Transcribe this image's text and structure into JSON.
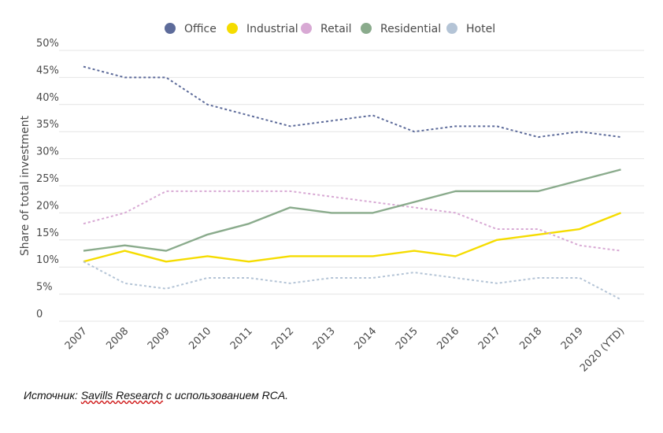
{
  "chart_data": {
    "type": "line",
    "xlabel": "",
    "ylabel": "Share of total investment",
    "categories": [
      "2007",
      "2008",
      "2009",
      "2010",
      "2011",
      "2012",
      "2013",
      "2014",
      "2015",
      "2016",
      "2017",
      "2018",
      "2019",
      "2020 (YTD)"
    ],
    "y_ticks": [
      "0",
      "5%",
      "10%",
      "15%",
      "20%",
      "25%",
      "30%",
      "35%",
      "40%",
      "45%",
      "50%"
    ],
    "ylim": [
      0,
      50
    ],
    "grid": true,
    "legend_position": "top",
    "series": [
      {
        "name": "Office",
        "color": "#5d6b9a",
        "style": "dashed",
        "values": [
          47,
          45,
          45,
          40,
          38,
          36,
          37,
          38,
          35,
          36,
          36,
          34,
          35,
          34
        ]
      },
      {
        "name": "Industrial",
        "color": "#f5dc00",
        "style": "solid",
        "values": [
          11,
          13,
          11,
          12,
          11,
          12,
          12,
          12,
          13,
          12,
          15,
          16,
          17,
          20
        ]
      },
      {
        "name": "Retail",
        "color": "#d8a9d4",
        "style": "dashed",
        "values": [
          18,
          20,
          24,
          24,
          24,
          24,
          23,
          22,
          21,
          20,
          17,
          17,
          14,
          13
        ]
      },
      {
        "name": "Residential",
        "color": "#8aab8c",
        "style": "solid",
        "values": [
          13,
          14,
          13,
          16,
          18,
          21,
          20,
          20,
          22,
          24,
          24,
          24,
          26,
          28
        ]
      },
      {
        "name": "Hotel",
        "color": "#b4c4d6",
        "style": "dashed",
        "values": [
          11,
          7,
          6,
          8,
          8,
          7,
          8,
          8,
          9,
          8,
          7,
          8,
          8,
          4
        ]
      }
    ]
  },
  "source": {
    "prefix": "Источник: ",
    "underlined": "Savills Research",
    "suffix": " с использованием RCA."
  }
}
